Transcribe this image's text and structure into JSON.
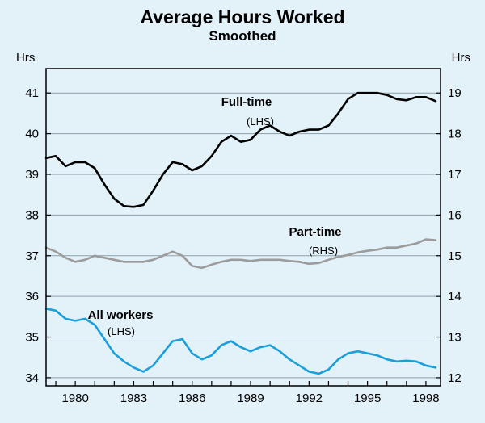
{
  "title": "Average Hours Worked",
  "subtitle": "Smoothed",
  "axis_units": {
    "left": "Hrs",
    "right": "Hrs"
  },
  "annotations": {
    "full_time": {
      "label": "Full-time",
      "axis_note": "(LHS)"
    },
    "part_time": {
      "label": "Part-time",
      "axis_note": "(RHS)"
    },
    "all_workers": {
      "label": "All workers",
      "axis_note": "(LHS)"
    }
  },
  "colors": {
    "background": "#e3f1f9",
    "grid": "#8c9faa",
    "axis": "#000000"
  },
  "chart_data": {
    "type": "line",
    "title": "Average Hours Worked",
    "subtitle": "Smoothed",
    "xlabel": "",
    "ylabel_left": "Hrs",
    "ylabel_right": "Hrs",
    "xlim": [
      1978.5,
      1998.75
    ],
    "ylim_left": [
      33.8,
      41.6
    ],
    "ylim_right": [
      11.8,
      19.6
    ],
    "xticks": [
      1980,
      1983,
      1986,
      1989,
      1992,
      1995,
      1998
    ],
    "xminor": [
      1979,
      1980,
      1981,
      1982,
      1983,
      1984,
      1985,
      1986,
      1987,
      1988,
      1989,
      1990,
      1991,
      1992,
      1993,
      1994,
      1995,
      1996,
      1997,
      1998
    ],
    "yticks_left": [
      34,
      35,
      36,
      37,
      38,
      39,
      40,
      41
    ],
    "yticks_right": [
      12,
      13,
      14,
      15,
      16,
      17,
      18,
      19
    ],
    "grid": true,
    "legend_position": "inline-annotations",
    "x": [
      1978.5,
      1979,
      1979.5,
      1980,
      1980.5,
      1981,
      1981.5,
      1982,
      1982.5,
      1983,
      1983.5,
      1984,
      1984.5,
      1985,
      1985.5,
      1986,
      1986.5,
      1987,
      1987.5,
      1988,
      1988.5,
      1989,
      1989.5,
      1990,
      1990.5,
      1991,
      1991.5,
      1992,
      1992.5,
      1993,
      1993.5,
      1994,
      1994.5,
      1995,
      1995.5,
      1996,
      1996.5,
      1997,
      1997.5,
      1998,
      1998.5
    ],
    "series": [
      {
        "name": "Full-time",
        "axis": "left",
        "color": "#000000",
        "values": [
          39.4,
          39.45,
          39.2,
          39.3,
          39.3,
          39.15,
          38.75,
          38.4,
          38.22,
          38.2,
          38.25,
          38.6,
          39.0,
          39.3,
          39.25,
          39.1,
          39.2,
          39.45,
          39.8,
          39.95,
          39.8,
          39.85,
          40.1,
          40.2,
          40.05,
          39.95,
          40.05,
          40.1,
          40.1,
          40.2,
          40.5,
          40.85,
          41.0,
          41.0,
          41.0,
          40.95,
          40.85,
          40.82,
          40.9,
          40.9,
          40.8
        ]
      },
      {
        "name": "Part-time",
        "axis": "right",
        "color": "#9c9c9c",
        "values": [
          15.2,
          15.1,
          14.95,
          14.85,
          14.9,
          15.0,
          14.95,
          14.9,
          14.85,
          14.85,
          14.85,
          14.9,
          15.0,
          15.1,
          15.0,
          14.75,
          14.7,
          14.78,
          14.85,
          14.9,
          14.9,
          14.87,
          14.9,
          14.9,
          14.9,
          14.87,
          14.85,
          14.8,
          14.82,
          14.9,
          14.97,
          15.02,
          15.08,
          15.12,
          15.15,
          15.2,
          15.2,
          15.25,
          15.3,
          15.4,
          15.38
        ]
      },
      {
        "name": "All workers",
        "axis": "left",
        "color": "#1a9fdb",
        "values": [
          35.7,
          35.65,
          35.45,
          35.4,
          35.45,
          35.3,
          34.95,
          34.6,
          34.4,
          34.25,
          34.15,
          34.3,
          34.6,
          34.9,
          34.95,
          34.6,
          34.45,
          34.55,
          34.8,
          34.9,
          34.75,
          34.65,
          34.75,
          34.8,
          34.65,
          34.45,
          34.3,
          34.15,
          34.1,
          34.2,
          34.45,
          34.6,
          34.65,
          34.6,
          34.55,
          34.45,
          34.4,
          34.42,
          34.4,
          34.3,
          34.25
        ]
      }
    ]
  }
}
